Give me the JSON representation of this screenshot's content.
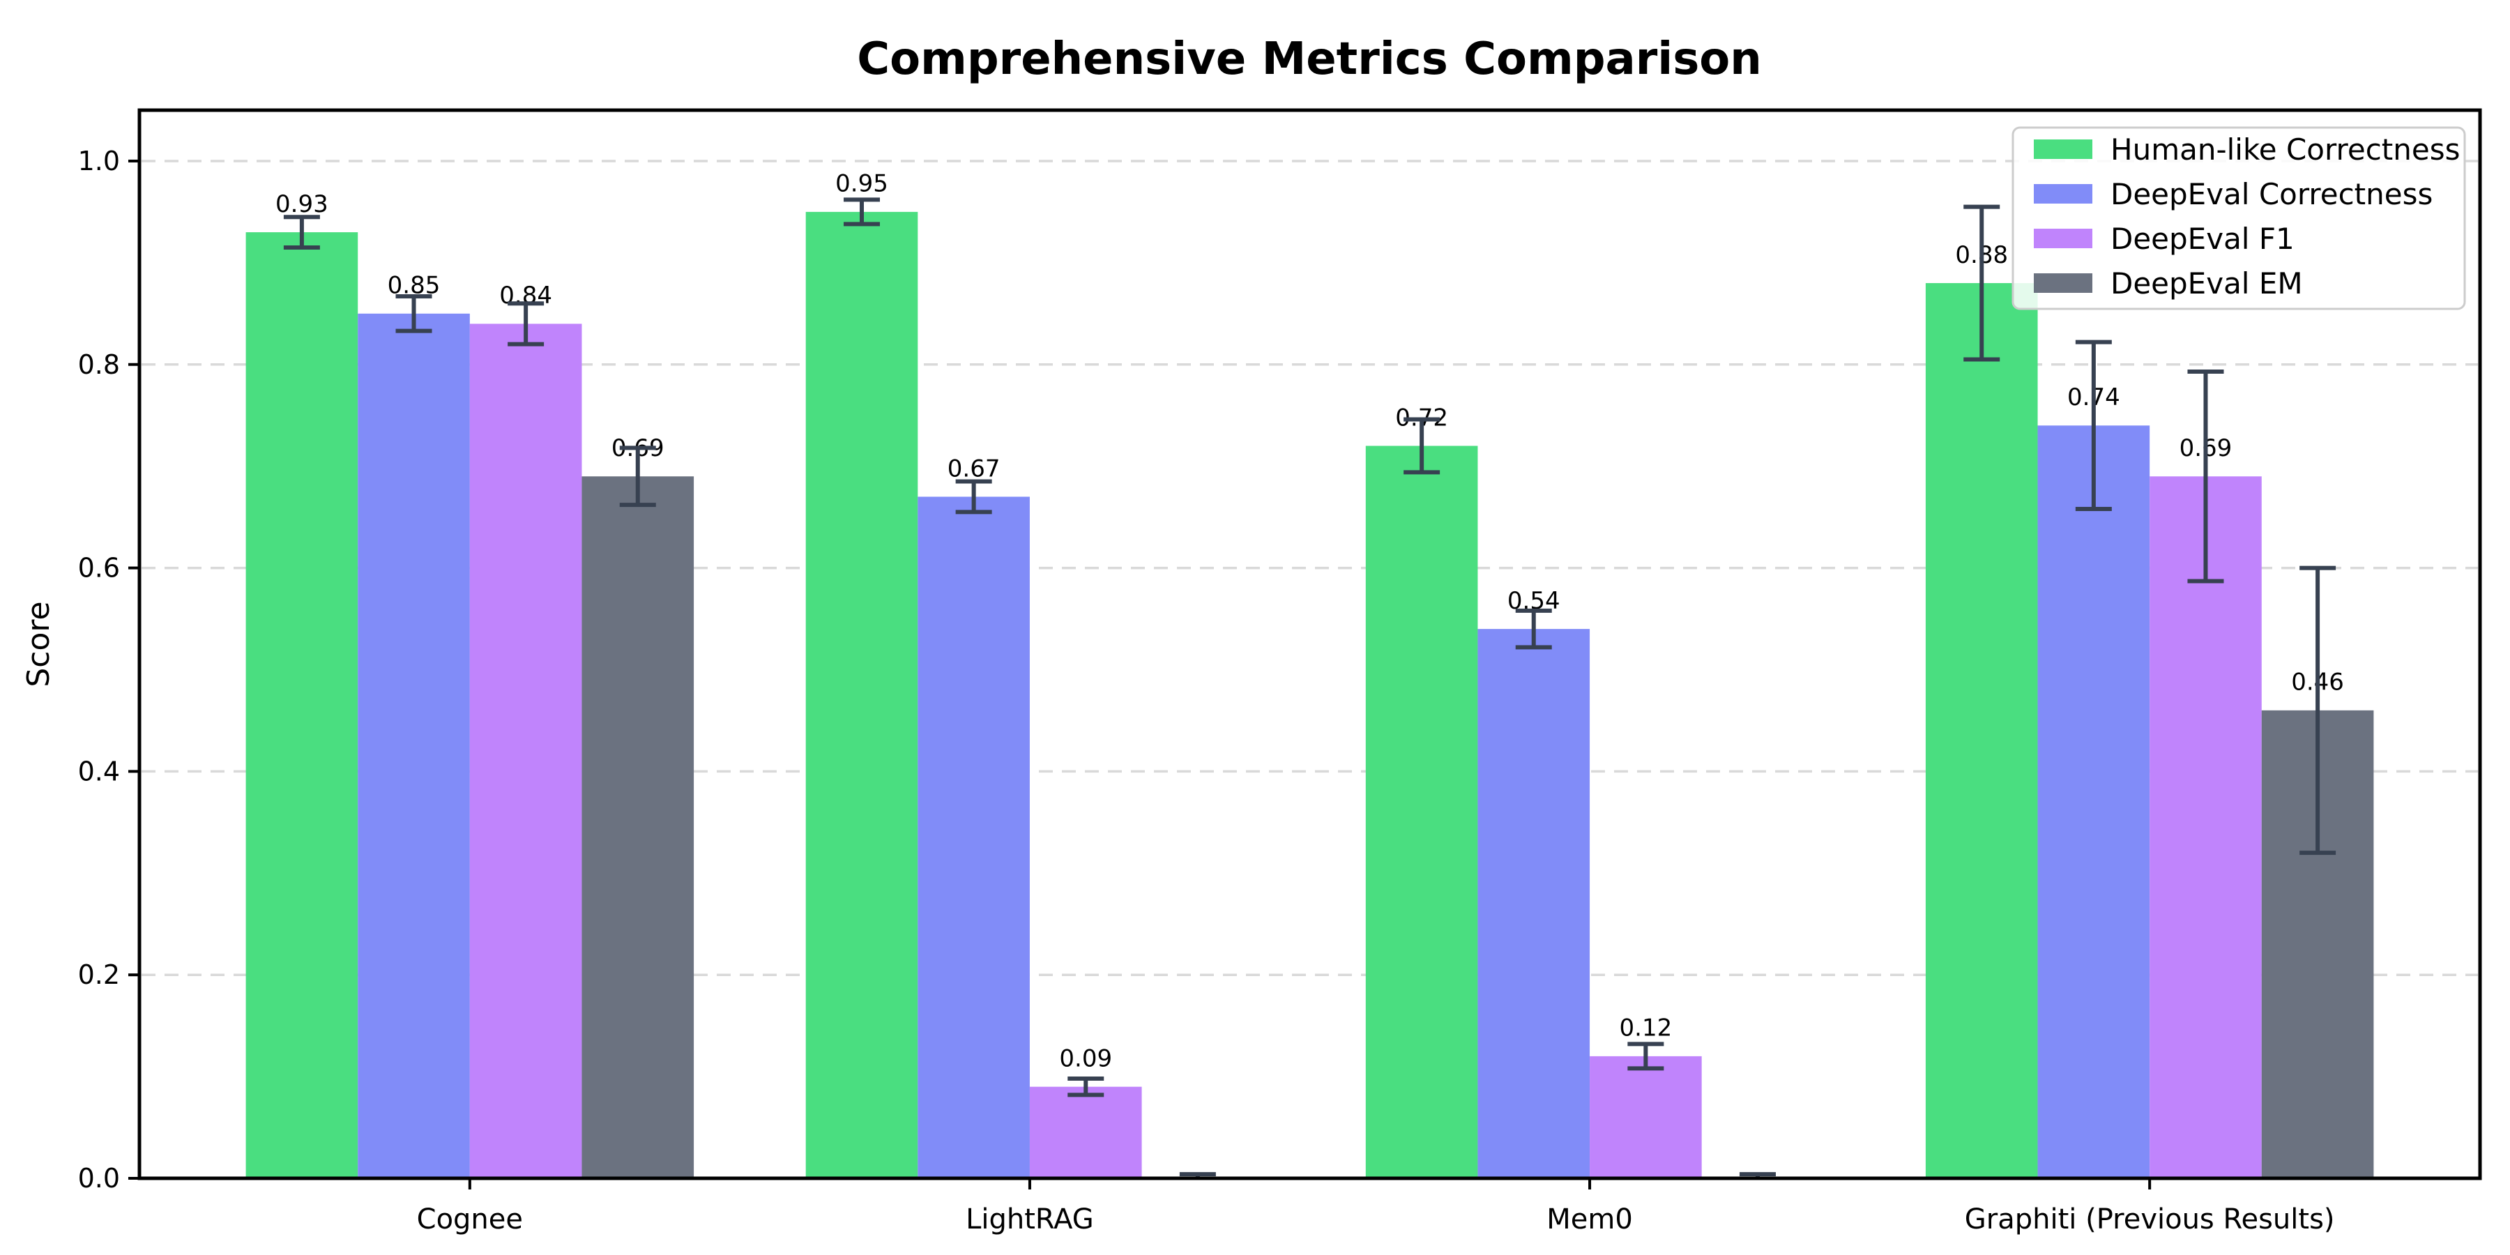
{
  "chart_data": {
    "type": "bar",
    "title": "Comprehensive Metrics Comparison",
    "xlabel": "",
    "ylabel": "Score",
    "categories": [
      "Cognee",
      "LightRAG",
      "Mem0",
      "Graphiti (Previous Results)"
    ],
    "series": [
      {
        "name": "Human-like Correctness",
        "color": "#4ade80",
        "values": [
          0.93,
          0.95,
          0.72,
          0.88
        ],
        "errors": [
          0.015,
          0.012,
          0.026,
          0.075
        ],
        "labels": [
          "0.93",
          "0.95",
          "0.72",
          "0.88"
        ]
      },
      {
        "name": "DeepEval Correctness",
        "color": "#818cf8",
        "values": [
          0.85,
          0.67,
          0.54,
          0.74
        ],
        "errors": [
          0.017,
          0.015,
          0.018,
          0.082
        ],
        "labels": [
          "0.85",
          "0.67",
          "0.54",
          "0.74"
        ]
      },
      {
        "name": "DeepEval F1",
        "color": "#c084fc",
        "values": [
          0.84,
          0.09,
          0.12,
          0.69
        ],
        "errors": [
          0.02,
          0.008,
          0.012,
          0.103
        ],
        "labels": [
          "0.84",
          "0.09",
          "0.12",
          "0.69"
        ]
      },
      {
        "name": "DeepEval EM",
        "color": "#6b7280",
        "values": [
          0.69,
          0.0,
          0.0,
          0.46
        ],
        "errors": [
          0.028,
          0.004,
          0.004,
          0.14
        ],
        "labels": [
          "0.69",
          null,
          null,
          "0.46"
        ]
      }
    ],
    "yticks": [
      0.0,
      0.2,
      0.4,
      0.6,
      0.8,
      1.0
    ],
    "ytick_labels": [
      "0.0",
      "0.2",
      "0.4",
      "0.6",
      "0.8",
      "1.0"
    ],
    "ylim": [
      0,
      1.05
    ],
    "grid": "horizontal-dashed",
    "legend_position": "upper right",
    "error_bar_color": "#374151",
    "grid_color": "#d9d9d9",
    "axis_color": "#000000",
    "label_color": "#000000",
    "legend_border_color": "#cccccc",
    "legend_background": "#ffffff"
  }
}
